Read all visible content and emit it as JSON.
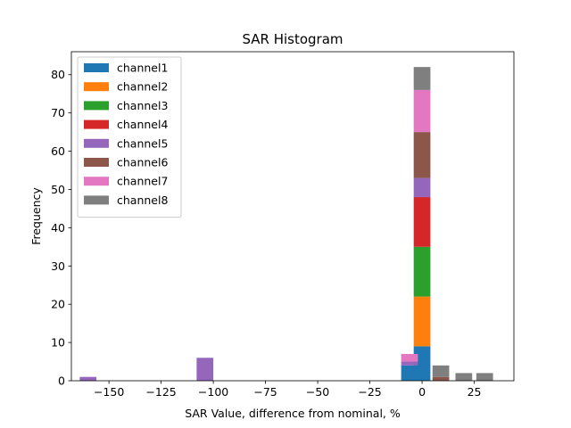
{
  "chart_data": {
    "type": "bar",
    "stacked": true,
    "title": "SAR Histogram",
    "xlabel": "SAR Value, difference from nominal, %",
    "ylabel": "Frequency",
    "xlim": [
      -168,
      44
    ],
    "ylim": [
      0,
      86
    ],
    "xticks": [
      -150,
      -125,
      -100,
      -75,
      -50,
      -25,
      0,
      25
    ],
    "xtick_labels": [
      "−150",
      "−125",
      "−100",
      "−75",
      "−50",
      "−25",
      "0",
      "25"
    ],
    "yticks": [
      0,
      10,
      20,
      30,
      40,
      50,
      60,
      70,
      80
    ],
    "bar_width": 8,
    "grid": false,
    "legend_position": "top-left",
    "series": [
      {
        "name": "channel1",
        "color": "#1f77b4",
        "bars": [
          {
            "x": -6,
            "value": 4
          },
          {
            "x": 0,
            "value": 9
          }
        ]
      },
      {
        "name": "channel2",
        "color": "#ff7f0e",
        "bars": [
          {
            "x": 0,
            "value": 13
          }
        ]
      },
      {
        "name": "channel3",
        "color": "#2ca02c",
        "bars": [
          {
            "x": 0,
            "value": 13
          }
        ]
      },
      {
        "name": "channel4",
        "color": "#d62728",
        "bars": [
          {
            "x": 0,
            "value": 13
          }
        ]
      },
      {
        "name": "channel5",
        "color": "#9467bd",
        "bars": [
          {
            "x": -160,
            "value": 1
          },
          {
            "x": -104,
            "value": 6
          },
          {
            "x": -6,
            "value": 1
          },
          {
            "x": 0,
            "value": 5
          }
        ]
      },
      {
        "name": "channel6",
        "color": "#8c564b",
        "bars": [
          {
            "x": 0,
            "value": 12
          },
          {
            "x": 9,
            "value": 1
          }
        ]
      },
      {
        "name": "channel7",
        "color": "#e377c2",
        "bars": [
          {
            "x": -6,
            "value": 2
          },
          {
            "x": 0,
            "value": 11
          }
        ]
      },
      {
        "name": "channel8",
        "color": "#7f7f7f",
        "bars": [
          {
            "x": 0,
            "value": 6
          },
          {
            "x": 9,
            "value": 3
          },
          {
            "x": 20,
            "value": 2
          },
          {
            "x": 30,
            "value": 2
          }
        ]
      }
    ]
  }
}
